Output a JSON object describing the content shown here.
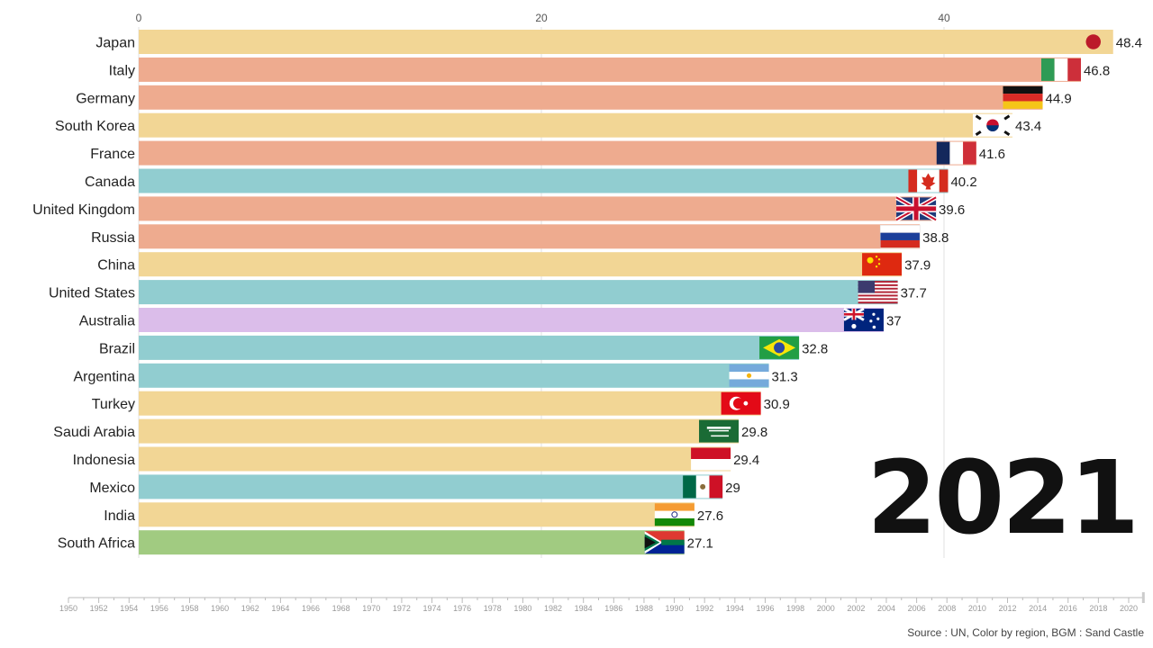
{
  "chart_data": {
    "type": "bar",
    "orientation": "horizontal",
    "title": "",
    "xlabel": "",
    "ylabel": "",
    "xlim": [
      0,
      48.4
    ],
    "x_ticks": [
      0,
      20,
      40
    ],
    "grid": true,
    "categories": [
      "Japan",
      "Italy",
      "Germany",
      "South Korea",
      "France",
      "Canada",
      "United Kingdom",
      "Russia",
      "China",
      "United States",
      "Australia",
      "Brazil",
      "Argentina",
      "Turkey",
      "Saudi Arabia",
      "Indonesia",
      "Mexico",
      "India",
      "South Africa"
    ],
    "values": [
      48.4,
      46.8,
      44.9,
      43.4,
      41.6,
      40.2,
      39.6,
      38.8,
      37.9,
      37.7,
      37,
      32.8,
      31.3,
      30.9,
      29.8,
      29.4,
      29,
      27.6,
      27.1
    ],
    "value_labels": [
      "48.4",
      "46.8",
      "44.9",
      "43.4",
      "41.6",
      "40.2",
      "39.6",
      "38.8",
      "37.9",
      "37.7",
      "37",
      "32.8",
      "31.3",
      "30.9",
      "29.8",
      "29.4",
      "29",
      "27.6",
      "27.1"
    ],
    "regions": [
      "asia",
      "europe",
      "europe",
      "asia",
      "europe",
      "americas",
      "europe",
      "europe",
      "asia",
      "americas",
      "oceania",
      "americas",
      "americas",
      "asia",
      "asia",
      "asia",
      "americas",
      "asia",
      "africa"
    ],
    "region_colors": {
      "asia": "#f2d695",
      "europe": "#eeab8f",
      "americas": "#91cdd0",
      "oceania": "#dbbdea",
      "africa": "#a1cb81"
    },
    "flags": [
      "flag-japan-icon",
      "flag-italy-icon",
      "flag-germany-icon",
      "flag-south-korea-icon",
      "flag-france-icon",
      "flag-canada-icon",
      "flag-uk-icon",
      "flag-russia-icon",
      "flag-china-icon",
      "flag-usa-icon",
      "flag-australia-icon",
      "flag-brazil-icon",
      "flag-argentina-icon",
      "flag-turkey-icon",
      "flag-saudi-arabia-icon",
      "flag-indonesia-icon",
      "flag-mexico-icon",
      "flag-india-icon",
      "flag-south-africa-icon"
    ]
  },
  "year_label": "2021",
  "timeline": {
    "start": 1950,
    "end": 2021,
    "current": 2021,
    "labels": [
      "1950",
      "1952",
      "1954",
      "1956",
      "1958",
      "1960",
      "1962",
      "1964",
      "1966",
      "1968",
      "1970",
      "1972",
      "1974",
      "1976",
      "1978",
      "1980",
      "1982",
      "1984",
      "1986",
      "1988",
      "1990",
      "1992",
      "1994",
      "1996",
      "1998",
      "2000",
      "2002",
      "2004",
      "2006",
      "2008",
      "2010",
      "2012",
      "2014",
      "2016",
      "2018",
      "2020"
    ]
  },
  "source_text": "Source : UN, Color by region, BGM : Sand Castle"
}
